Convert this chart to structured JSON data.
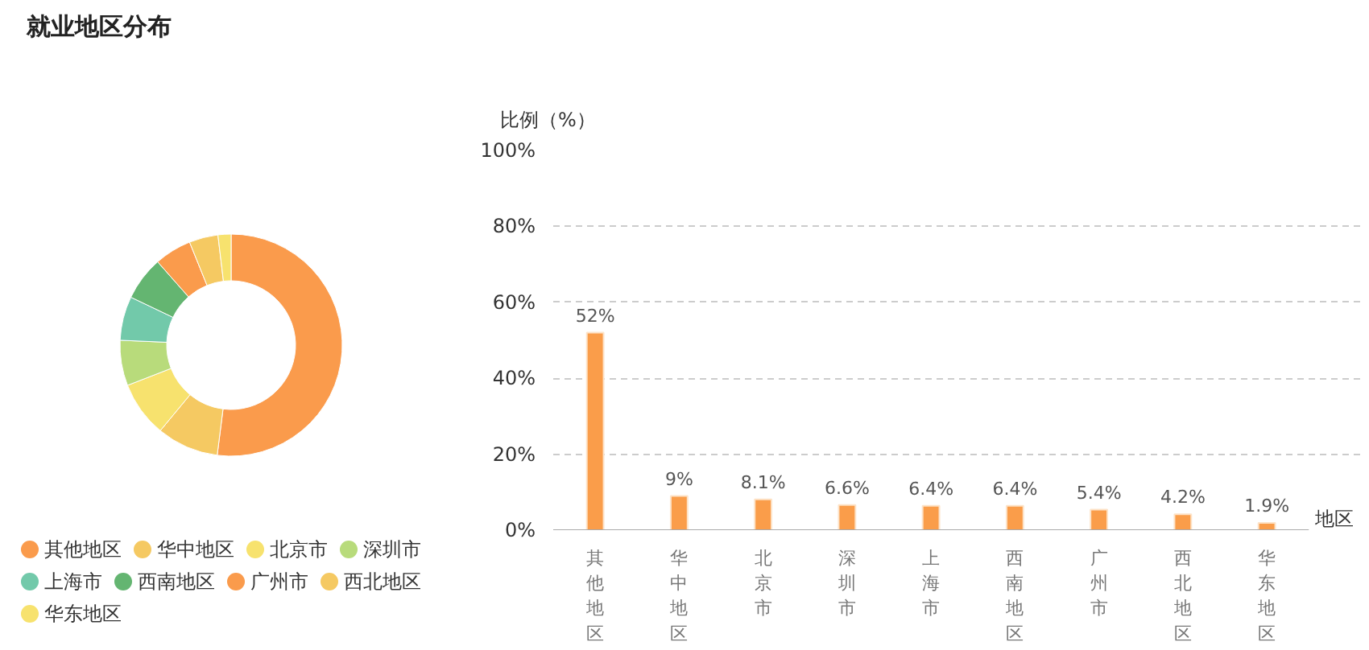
{
  "chart_data": [
    {
      "type": "donut",
      "title": "就业地区分布",
      "categories": [
        "其他地区",
        "华中地区",
        "北京市",
        "深圳市",
        "上海市",
        "西南地区",
        "广州市",
        "西北地区",
        "华东地区"
      ],
      "values": [
        52,
        9,
        8.1,
        6.6,
        6.4,
        6.4,
        5.4,
        4.2,
        1.9
      ],
      "colors": [
        "#fa9b4c",
        "#f5c962",
        "#f7e26e",
        "#b8db7b",
        "#72c9aa",
        "#64b571",
        "#fa9b4c",
        "#f5c962",
        "#f7e26e"
      ],
      "legend": "bottom"
    },
    {
      "type": "bar",
      "categories": [
        "其他地区",
        "华中地区",
        "北京市",
        "深圳市",
        "上海市",
        "西南地区",
        "广州市",
        "西北地区",
        "华东地区"
      ],
      "values": [
        52,
        9,
        8.1,
        6.6,
        6.4,
        6.4,
        5.4,
        4.2,
        1.9
      ],
      "value_labels": [
        "52%",
        "9%",
        "8.1%",
        "6.6%",
        "6.4%",
        "6.4%",
        "5.4%",
        "4.2%",
        "1.9%"
      ],
      "color": "#fa9d4a",
      "ylabel": "比例（%）",
      "xlabel": "地区",
      "ylim": [
        0,
        100
      ],
      "yticks": [
        {
          "value": 0,
          "label": "0%"
        },
        {
          "value": 20,
          "label": "20%"
        },
        {
          "value": 40,
          "label": "40%"
        },
        {
          "value": 60,
          "label": "60%"
        },
        {
          "value": 80,
          "label": "80%"
        },
        {
          "value": 100,
          "label": "100%"
        }
      ],
      "grid": "y"
    }
  ]
}
